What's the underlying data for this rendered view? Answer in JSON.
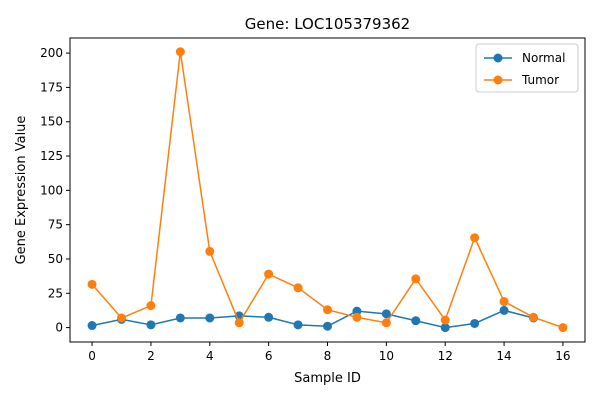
{
  "chart_data": {
    "type": "line",
    "title": "Gene: LOC105379362",
    "xlabel": "Sample ID",
    "ylabel": "Gene Expression Value",
    "xlim": [
      -0.75,
      16.75
    ],
    "ylim": [
      -10.5,
      211
    ],
    "xticks": [
      0,
      2,
      4,
      6,
      8,
      10,
      12,
      14,
      16
    ],
    "yticks": [
      0,
      25,
      50,
      75,
      100,
      125,
      150,
      175,
      200
    ],
    "grid": false,
    "legend_position": "top-right",
    "series": [
      {
        "name": "Normal",
        "color": "#1f77b4",
        "x": [
          0,
          1,
          2,
          3,
          4,
          5,
          6,
          7,
          8,
          9,
          10,
          11,
          12,
          13,
          14,
          15
        ],
        "y": [
          1.5,
          6,
          2,
          7,
          7,
          8.5,
          7.5,
          2,
          1,
          12,
          10,
          5,
          0,
          3,
          12.5,
          7
        ]
      },
      {
        "name": "Tumor",
        "color": "#ff7f0e",
        "x": [
          0,
          1,
          2,
          3,
          4,
          5,
          6,
          7,
          8,
          9,
          10,
          11,
          12,
          13,
          14,
          15,
          16
        ],
        "y": [
          31.5,
          7,
          16,
          201,
          55.5,
          3.5,
          39,
          29,
          13,
          7.5,
          3.5,
          35.5,
          5.5,
          65.5,
          19,
          7.5,
          0
        ]
      }
    ]
  }
}
